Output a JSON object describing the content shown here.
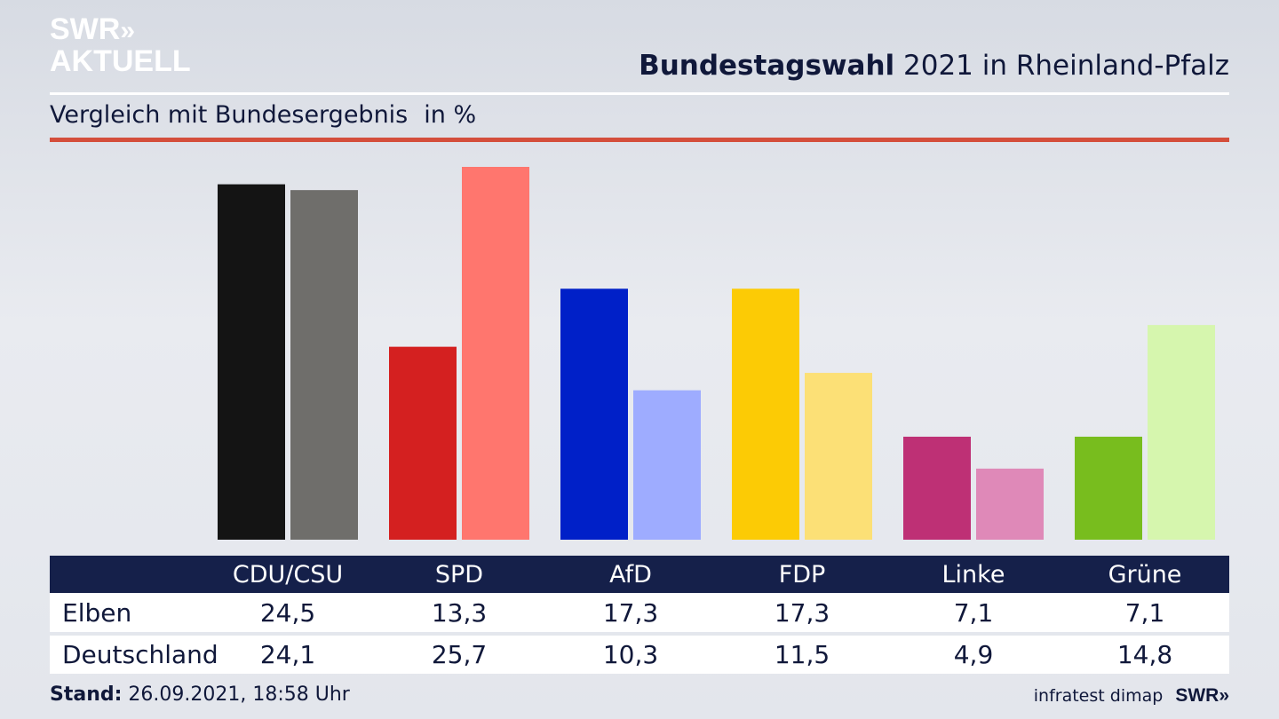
{
  "logo": {
    "line1": "SWR",
    "line1_mark": "»",
    "line2": "AKTUELL"
  },
  "header": {
    "title_bold": "Bundestagswahl",
    "title_rest": " 2021 in Rheinland-Pfalz",
    "subtitle": "Vergleich mit Bundesergebnis",
    "unit": "in %"
  },
  "chart_data": {
    "type": "bar",
    "title": "Bundestagswahl 2021 in Rheinland-Pfalz",
    "subtitle": "Vergleich mit Bundesergebnis in %",
    "categories": [
      "CDU/CSU",
      "SPD",
      "AfD",
      "FDP",
      "Linke",
      "Grüne"
    ],
    "series": [
      {
        "name": "Elben",
        "values": [
          24.5,
          13.3,
          17.3,
          17.3,
          7.1,
          7.1
        ],
        "colors": [
          "#141414",
          "#d42020",
          "#0020c8",
          "#fccb05",
          "#be3075",
          "#78bd1e"
        ]
      },
      {
        "name": "Deutschland",
        "values": [
          24.1,
          25.7,
          10.3,
          11.5,
          4.9,
          14.8
        ],
        "colors": [
          "#6f6e6b",
          "#ff766e",
          "#9eacff",
          "#fce076",
          "#df89b8",
          "#d6f6ae"
        ]
      }
    ],
    "ylim": [
      0,
      25.7
    ],
    "grid": false
  },
  "table": {
    "rows": [
      {
        "label": "Elben",
        "values": [
          "24,5",
          "13,3",
          "17,3",
          "17,3",
          "7,1",
          "7,1"
        ]
      },
      {
        "label": "Deutschland",
        "values": [
          "24,1",
          "25,7",
          "10,3",
          "11,5",
          "4,9",
          "14,8"
        ]
      }
    ]
  },
  "footer": {
    "stand_label": "Stand:",
    "stand_value": " 26.09.2021, 18:58 Uhr",
    "source": "infratest dimap",
    "brand": "SWR",
    "brand_mark": "»"
  },
  "colors": {
    "accent_red": "#d44e3b",
    "navy": "#15204a"
  }
}
